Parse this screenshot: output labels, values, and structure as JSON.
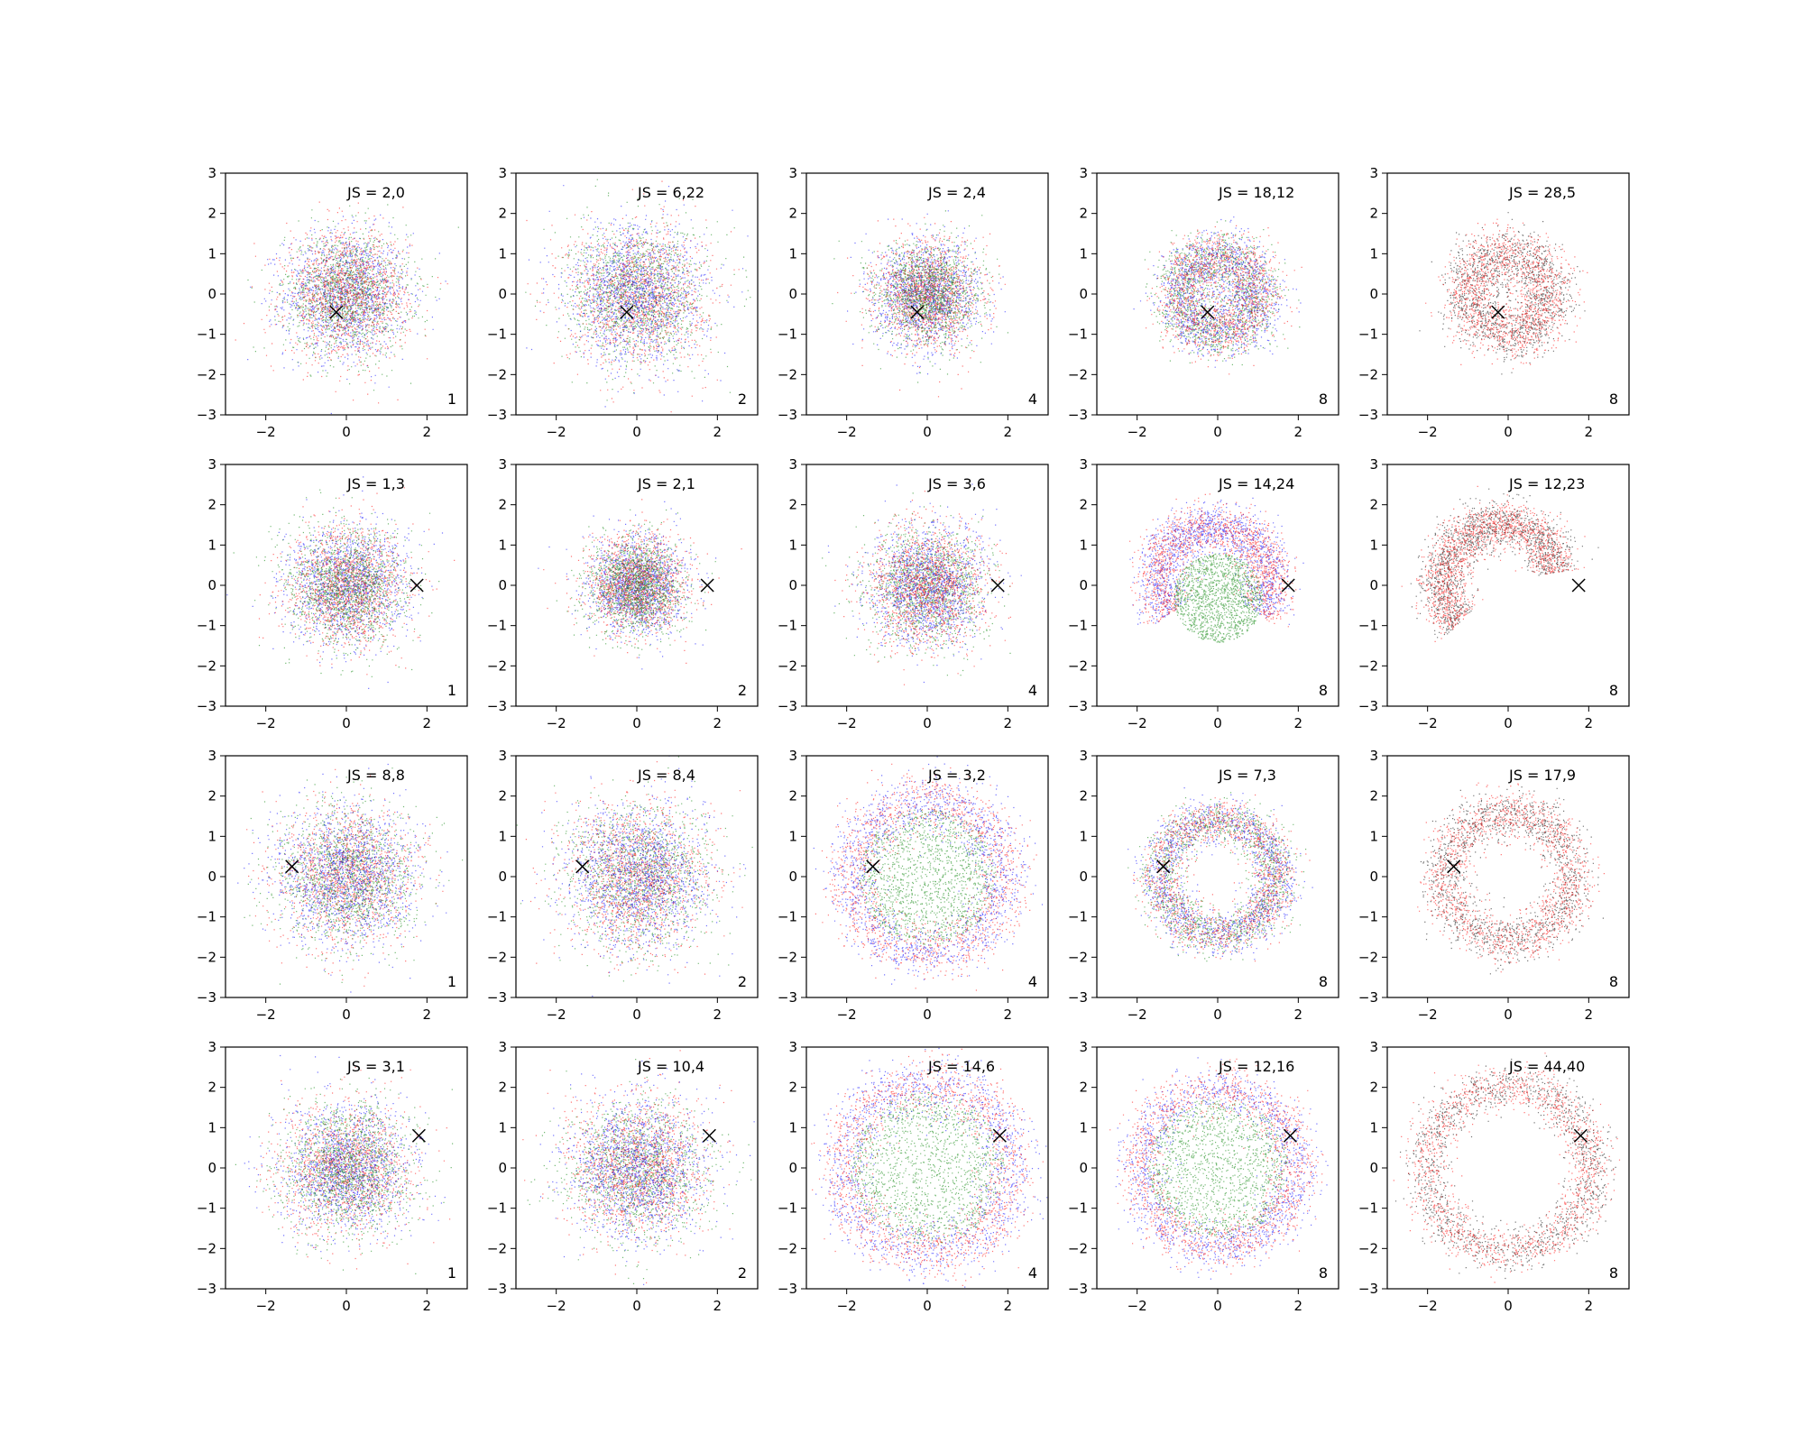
{
  "chart_data": {
    "type": "scatter",
    "rows": 4,
    "cols": 5,
    "xlim": [
      -3,
      3
    ],
    "ylim": [
      -3,
      3
    ],
    "xticks": [
      -2,
      0,
      2
    ],
    "yticks": [
      -3,
      -2,
      -1,
      0,
      1,
      2,
      3
    ],
    "grid": false,
    "series_colors": {
      "blue": "#0000ff",
      "green": "#008000",
      "red": "#ff0000",
      "black": "#000000"
    },
    "marker_color": "#000000",
    "panels": [
      {
        "row": 0,
        "col": 0,
        "title": "JS = 2,0",
        "corner_label": "1",
        "marker": [
          -0.25,
          -0.45
        ],
        "pattern": "blob",
        "spread": 0.9,
        "inner": 0,
        "colors": [
          "blue",
          "green",
          "red"
        ]
      },
      {
        "row": 0,
        "col": 1,
        "title": "JS = 6,22",
        "corner_label": "2",
        "marker": [
          -0.25,
          -0.45
        ],
        "pattern": "blob",
        "spread": 1.0,
        "inner": 0,
        "colors": [
          "red",
          "green",
          "blue"
        ]
      },
      {
        "row": 0,
        "col": 2,
        "title": "JS = 2,4",
        "corner_label": "4",
        "marker": [
          -0.25,
          -0.45
        ],
        "pattern": "blob",
        "spread": 0.75,
        "inner": 0,
        "colors": [
          "blue",
          "red",
          "green"
        ]
      },
      {
        "row": 0,
        "col": 3,
        "title": "JS = 18,12",
        "corner_label": "8",
        "marker": [
          -0.25,
          -0.45
        ],
        "pattern": "ring",
        "radius": 1.0,
        "width": 0.35,
        "colors": [
          "green",
          "blue",
          "red"
        ]
      },
      {
        "row": 0,
        "col": 4,
        "title": "JS = 28,5",
        "corner_label": "8",
        "marker": [
          -0.25,
          -0.45
        ],
        "pattern": "ring",
        "radius": 1.05,
        "width": 0.35,
        "colors": [
          "black",
          "red"
        ]
      },
      {
        "row": 1,
        "col": 0,
        "title": "JS = 1,3",
        "corner_label": "1",
        "marker": [
          1.75,
          0.0
        ],
        "pattern": "blob",
        "spread": 0.85,
        "inner": 0,
        "colors": [
          "blue",
          "red",
          "green"
        ]
      },
      {
        "row": 1,
        "col": 1,
        "title": "JS = 2,1",
        "corner_label": "2",
        "marker": [
          1.75,
          0.0
        ],
        "pattern": "blob",
        "spread": 0.7,
        "inner": 0,
        "colors": [
          "blue",
          "red",
          "green"
        ]
      },
      {
        "row": 1,
        "col": 2,
        "title": "JS = 3,6",
        "corner_label": "4",
        "marker": [
          1.75,
          0.0
        ],
        "pattern": "blob",
        "spread": 0.85,
        "inner": 0,
        "colors": [
          "green",
          "blue",
          "red"
        ]
      },
      {
        "row": 1,
        "col": 3,
        "title": "JS = 14,24",
        "corner_label": "8",
        "marker": [
          1.75,
          0.0
        ],
        "pattern": "arc-ring",
        "radius": 1.4,
        "width": 0.3,
        "colors": [
          "blue",
          "red",
          "green"
        ]
      },
      {
        "row": 1,
        "col": 4,
        "title": "JS = 12,23",
        "corner_label": "8",
        "marker": [
          1.75,
          0.0
        ],
        "pattern": "arc",
        "radius": 1.45,
        "width": 0.3,
        "colors": [
          "black",
          "red"
        ]
      },
      {
        "row": 2,
        "col": 0,
        "title": "JS = 8,8",
        "corner_label": "1",
        "marker": [
          -1.35,
          0.25
        ],
        "pattern": "blob",
        "spread": 1.0,
        "inner": 0,
        "colors": [
          "red",
          "green",
          "blue"
        ]
      },
      {
        "row": 2,
        "col": 1,
        "title": "JS = 8,4",
        "corner_label": "2",
        "marker": [
          -1.35,
          0.25
        ],
        "pattern": "blob",
        "spread": 1.05,
        "inner": 0,
        "colors": [
          "green",
          "red",
          "blue"
        ]
      },
      {
        "row": 2,
        "col": 2,
        "title": "JS = 3,2",
        "corner_label": "4",
        "marker": [
          -1.35,
          0.25
        ],
        "pattern": "ring-fill",
        "radius": 1.9,
        "width": 0.35,
        "colors": [
          "green",
          "red",
          "blue"
        ]
      },
      {
        "row": 2,
        "col": 3,
        "title": "JS = 7,3",
        "corner_label": "8",
        "marker": [
          -1.35,
          0.25
        ],
        "pattern": "ring",
        "radius": 1.45,
        "width": 0.28,
        "colors": [
          "green",
          "blue",
          "red"
        ]
      },
      {
        "row": 2,
        "col": 4,
        "title": "JS = 17,9",
        "corner_label": "8",
        "marker": [
          -1.35,
          0.25
        ],
        "pattern": "ring",
        "radius": 1.6,
        "width": 0.3,
        "colors": [
          "black",
          "red"
        ]
      },
      {
        "row": 3,
        "col": 0,
        "title": "JS = 3,1",
        "corner_label": "1",
        "marker": [
          1.8,
          0.8
        ],
        "pattern": "blob",
        "spread": 0.95,
        "inner": 0,
        "colors": [
          "red",
          "blue",
          "green"
        ]
      },
      {
        "row": 3,
        "col": 1,
        "title": "JS = 10,4",
        "corner_label": "2",
        "marker": [
          1.8,
          0.8
        ],
        "pattern": "blob",
        "spread": 1.0,
        "inner": 0,
        "colors": [
          "green",
          "red",
          "blue"
        ]
      },
      {
        "row": 3,
        "col": 2,
        "title": "JS = 14,6",
        "corner_label": "4",
        "marker": [
          1.8,
          0.8
        ],
        "pattern": "ring-fill",
        "radius": 2.1,
        "width": 0.35,
        "colors": [
          "green",
          "blue",
          "red"
        ]
      },
      {
        "row": 3,
        "col": 3,
        "title": "JS = 12,16",
        "corner_label": "8",
        "marker": [
          1.8,
          0.8
        ],
        "pattern": "ring-fill",
        "radius": 1.95,
        "width": 0.3,
        "colors": [
          "green",
          "blue",
          "red"
        ]
      },
      {
        "row": 3,
        "col": 4,
        "title": "JS = 44,40",
        "corner_label": "8",
        "marker": [
          1.8,
          0.8
        ],
        "pattern": "ring",
        "radius": 2.05,
        "width": 0.28,
        "colors": [
          "black",
          "red"
        ]
      }
    ]
  }
}
